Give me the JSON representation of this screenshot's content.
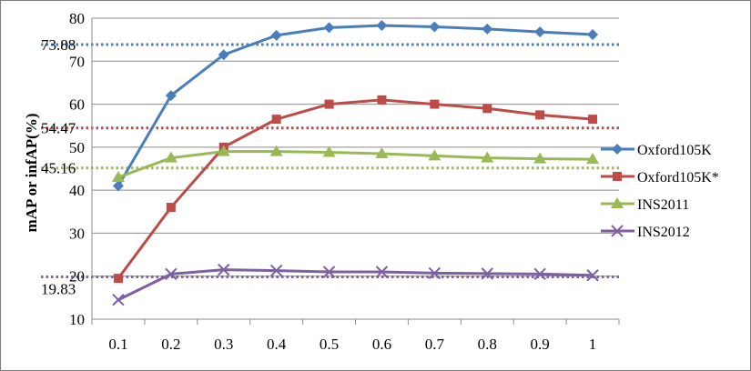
{
  "chart_data": {
    "type": "line",
    "title": "",
    "xlabel": "",
    "ylabel": "mAP or infAP(%)",
    "x": [
      "0.1",
      "0.2",
      "0.3",
      "0.4",
      "0.5",
      "0.6",
      "0.7",
      "0.8",
      "0.9",
      "1"
    ],
    "ylim": [
      10,
      80
    ],
    "yticks": [
      10,
      20,
      30,
      40,
      50,
      60,
      70,
      80
    ],
    "grid": "horizontal",
    "legend_position": "right",
    "series": [
      {
        "name": "Oxford105K",
        "color": "#4a7ebb",
        "marker": "diamond",
        "values": [
          41,
          62,
          71.5,
          76,
          77.8,
          78.3,
          78,
          77.5,
          76.8,
          76.2
        ]
      },
      {
        "name": "Oxford105K*",
        "color": "#be4b48",
        "marker": "square",
        "values": [
          19.5,
          36,
          50,
          56.5,
          60,
          61,
          60,
          59,
          57.5,
          56.5
        ]
      },
      {
        "name": "INS2011",
        "color": "#98b954",
        "marker": "triangle",
        "values": [
          43,
          47.5,
          49,
          49,
          48.8,
          48.5,
          48,
          47.5,
          47.3,
          47.2
        ]
      },
      {
        "name": "INS2012",
        "color": "#7d60a0",
        "marker": "x",
        "values": [
          14.5,
          20.5,
          21.5,
          21.3,
          21,
          21,
          20.7,
          20.6,
          20.5,
          20.2
        ]
      }
    ],
    "reference_lines": [
      {
        "value": 73.88,
        "label": "73.88",
        "color": "#4a7ebb"
      },
      {
        "value": 54.47,
        "label": "54.47",
        "color": "#be4b48"
      },
      {
        "value": 45.16,
        "label": "45.16",
        "color": "#98b954"
      },
      {
        "value": 19.83,
        "label": "19.83",
        "color": "#7d60a0"
      }
    ]
  }
}
